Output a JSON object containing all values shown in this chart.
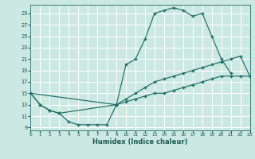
{
  "xlabel": "Humidex (Indice chaleur)",
  "bg_color": "#cce8e3",
  "grid_color": "#b8d8d2",
  "line_color": "#1e6e64",
  "xlim": [
    0,
    23
  ],
  "ylim": [
    8.5,
    30.5
  ],
  "xticks": [
    0,
    1,
    2,
    3,
    4,
    5,
    6,
    7,
    8,
    9,
    10,
    11,
    12,
    13,
    14,
    15,
    16,
    17,
    18,
    19,
    20,
    21,
    22,
    23
  ],
  "yticks": [
    9,
    11,
    13,
    15,
    17,
    19,
    21,
    23,
    25,
    27,
    29
  ],
  "curve_upper_x": [
    0,
    1,
    2,
    3,
    9,
    10,
    11,
    12,
    13,
    14,
    15,
    16,
    17,
    18,
    19,
    20,
    21
  ],
  "curve_upper_y": [
    15,
    13,
    12,
    11.5,
    13,
    20,
    21,
    24.5,
    29,
    29.5,
    30,
    29.5,
    28.5,
    29,
    25,
    21,
    18.5
  ],
  "curve_mid_x": [
    0,
    9,
    10,
    11,
    12,
    13,
    14,
    15,
    16,
    17,
    18,
    19,
    20,
    21,
    22,
    23
  ],
  "curve_mid_y": [
    15,
    13,
    14,
    15,
    16,
    17,
    17.5,
    18,
    18.5,
    19,
    19.5,
    20,
    20.5,
    21,
    21.5,
    18
  ],
  "curve_lower_x": [
    0,
    1,
    2,
    3,
    4,
    5,
    6,
    7,
    8,
    9,
    10,
    11,
    12,
    13,
    14,
    15,
    16,
    17,
    18,
    19,
    20,
    21,
    22,
    23
  ],
  "curve_lower_y": [
    15,
    13,
    12,
    11.5,
    10,
    9.5,
    9.5,
    9.5,
    9.5,
    13,
    13.5,
    14,
    14.5,
    15,
    15,
    15.5,
    16,
    16.5,
    17,
    17.5,
    18,
    18,
    18,
    18
  ]
}
